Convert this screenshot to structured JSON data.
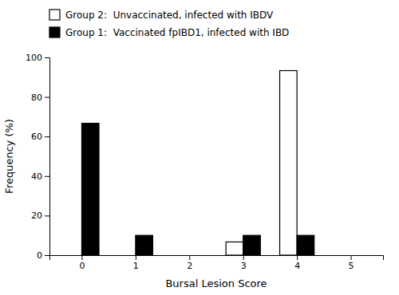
{
  "chart_data": {
    "type": "bar",
    "xlabel": "Bursal Lesion Score",
    "ylabel": "Frequency (%)",
    "x": [
      0,
      1,
      2,
      3,
      4,
      5
    ],
    "series": [
      {
        "name": "Group 2:  Unvaccinated, infected with IBDV",
        "color": "#ffffff",
        "values": [
          0,
          0,
          0,
          6.67,
          93.33,
          0
        ]
      },
      {
        "name": "Group 1:  Vaccinated fpIBD1, infected with IBD",
        "color": "#000000",
        "values": [
          66.67,
          10,
          0,
          10,
          10,
          0
        ]
      }
    ],
    "xlim": [
      -0.6,
      5.6
    ],
    "xticks": [
      0,
      1,
      2,
      3,
      4,
      5
    ],
    "ylim": [
      0,
      100
    ],
    "yticks": [
      0,
      20,
      40,
      60,
      80,
      100
    ],
    "grid": false,
    "legend": "top"
  }
}
